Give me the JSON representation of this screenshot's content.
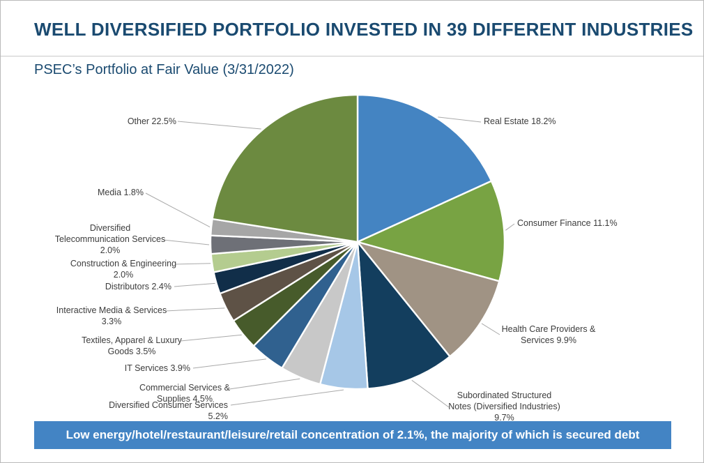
{
  "page": {
    "title": "WELL DIVERSIFIED PORTFOLIO INVESTED IN 39 DIFFERENT INDUSTRIES",
    "subtitle": "PSEC’s Portfolio at Fair Value (3/31/2022)",
    "banner": "Low energy/hotel/restaurant/leisure/retail concentration of 2.1%, the majority of which is secured debt"
  },
  "colors": {
    "title_navy": "#1a4a70",
    "banner_bg": "#4384c4",
    "banner_text": "#ffffff",
    "label_text": "#3c3c3c",
    "leader_line": "#a9a9a9",
    "page_border": "#b9b9b9",
    "divider": "#c9c9c9",
    "slice_gap": "#ffffff"
  },
  "chart_data": {
    "type": "pie",
    "title": "PSEC’s Portfolio at Fair Value (3/31/2022)",
    "units": "percent of portfolio at fair value",
    "start_angle_deg": 0,
    "direction": "clockwise",
    "total": 100.0,
    "slices": [
      {
        "name": "Real Estate",
        "value": 18.2,
        "color": "#4484c2",
        "label_lines": [
          "Real Estate 18.2%"
        ]
      },
      {
        "name": "Consumer Finance",
        "value": 11.1,
        "color": "#78a343",
        "label_lines": [
          "Consumer Finance 11.1%"
        ]
      },
      {
        "name": "Health Care Providers & Services",
        "value": 9.9,
        "color": "#a09384",
        "label_lines": [
          "Health Care Providers &",
          "Services 9.9%"
        ]
      },
      {
        "name": "Subordinated Structured Notes (Diversified Industries)",
        "value": 9.7,
        "color": "#133e5e",
        "label_lines": [
          "Subordinated Structured",
          "Notes (Diversified Industries)",
          "9.7%"
        ]
      },
      {
        "name": "Diversified Consumer Services",
        "value": 5.2,
        "color": "#a6c7e7",
        "label_lines": [
          "Diversified Consumer Services 5.2%"
        ]
      },
      {
        "name": "Commercial Services & Supplies",
        "value": 4.5,
        "color": "#c8c8c8",
        "label_lines": [
          "Commercial Services &",
          "Supplies 4.5%"
        ]
      },
      {
        "name": "IT Services",
        "value": 3.9,
        "color": "#30618f",
        "label_lines": [
          "IT Services 3.9%"
        ]
      },
      {
        "name": "Textiles, Apparel & Luxury Goods",
        "value": 3.5,
        "color": "#475b2b",
        "label_lines": [
          "Textiles, Apparel & Luxury",
          "Goods 3.5%"
        ]
      },
      {
        "name": "Interactive Media & Services",
        "value": 3.3,
        "color": "#5e5246",
        "label_lines": [
          "Interactive Media & Services",
          "3.3%"
        ]
      },
      {
        "name": "Distributors",
        "value": 2.4,
        "color": "#112e49",
        "label_lines": [
          "Distributors 2.4%"
        ]
      },
      {
        "name": "Construction & Engineering",
        "value": 2.0,
        "color": "#b4cc8f",
        "label_lines": [
          "Construction & Engineering",
          "2.0%"
        ]
      },
      {
        "name": "Diversified Telecommunication Services",
        "value": 2.0,
        "color": "#6e7077",
        "label_lines": [
          "Diversified",
          "Telecommunication Services",
          "2.0%"
        ]
      },
      {
        "name": "Media",
        "value": 1.8,
        "color": "#a6a6a6",
        "label_lines": [
          "Media 1.8%"
        ]
      },
      {
        "name": "Other",
        "value": 22.5,
        "color": "#6c8a40",
        "label_lines": [
          "Other 22.5%"
        ]
      }
    ]
  }
}
